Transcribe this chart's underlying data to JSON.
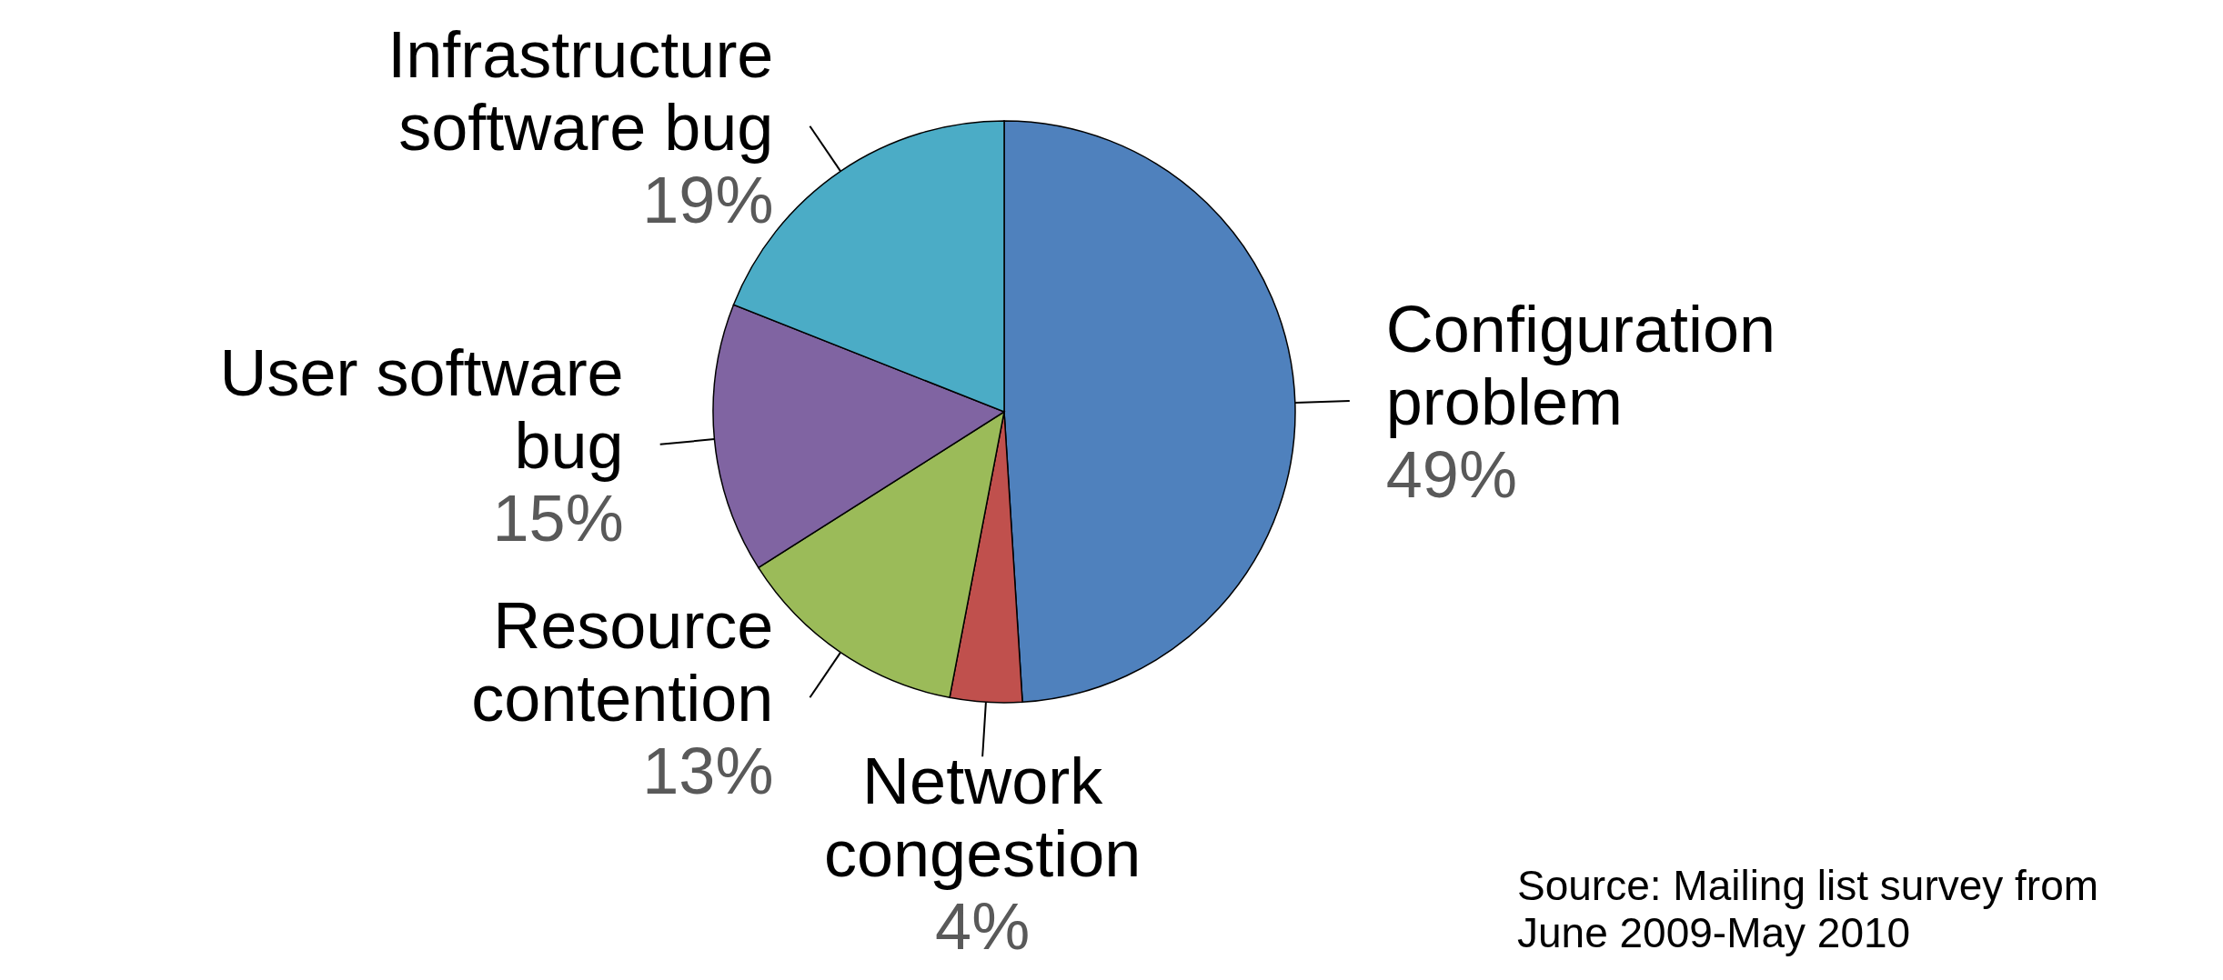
{
  "chart_data": {
    "type": "pie",
    "categories": [
      "Configuration problem",
      "Network congestion",
      "Resource contention",
      "User software bug",
      "Infrastructure software bug"
    ],
    "values": [
      49,
      4,
      13,
      15,
      19
    ],
    "colors": [
      "#4f81bd",
      "#c0504d",
      "#9bbb59",
      "#8064a2",
      "#4bacc6"
    ],
    "value_labels": [
      "49%",
      "4%",
      "13%",
      "15%",
      "19%"
    ],
    "annotations": [
      "Source: Mailing list survey from June 2009-May 2010"
    ]
  }
}
